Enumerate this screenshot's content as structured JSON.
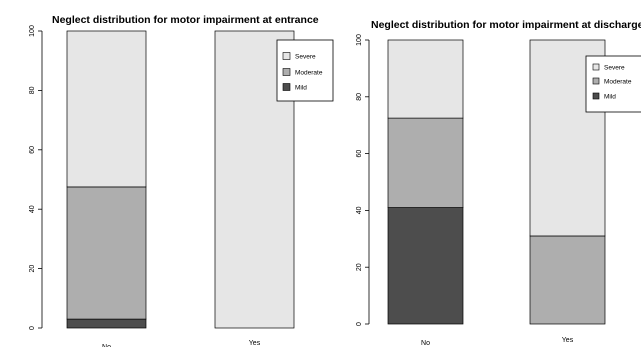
{
  "chart_data": [
    {
      "type": "bar",
      "stacked": true,
      "title": "Neglect distribution for motor impairment at entrance",
      "xlabel": "",
      "ylabel": "",
      "categories": [
        "No",
        "Yes"
      ],
      "ylim": [
        0,
        100
      ],
      "yticks": [
        "0",
        "20",
        "40",
        "60",
        "80",
        "100"
      ],
      "series": [
        {
          "name": "Mild",
          "color": "#4d4d4d",
          "values": [
            3,
            0
          ]
        },
        {
          "name": "Moderate",
          "color": "#aeaeae",
          "values": [
            44.5,
            0
          ]
        },
        {
          "name": "Severe",
          "color": "#e6e6e6",
          "values": [
            52.5,
            100
          ]
        }
      ],
      "legend": {
        "position": "top-right",
        "order": [
          "Severe",
          "Moderate",
          "Mild"
        ]
      },
      "grid": false
    },
    {
      "type": "bar",
      "stacked": true,
      "title": "Neglect distribution for motor impairment at discharge",
      "xlabel": "",
      "ylabel": "",
      "categories": [
        "No",
        "Yes"
      ],
      "ylim": [
        0,
        100
      ],
      "yticks": [
        "0",
        "20",
        "40",
        "60",
        "80",
        "100"
      ],
      "series": [
        {
          "name": "Mild",
          "color": "#4d4d4d",
          "values": [
            41,
            0
          ]
        },
        {
          "name": "Moderate",
          "color": "#aeaeae",
          "values": [
            31.5,
            31
          ]
        },
        {
          "name": "Severe",
          "color": "#e6e6e6",
          "values": [
            27.5,
            69
          ]
        }
      ],
      "legend": {
        "position": "top-right",
        "order": [
          "Severe",
          "Moderate",
          "Mild"
        ]
      },
      "grid": false
    }
  ]
}
